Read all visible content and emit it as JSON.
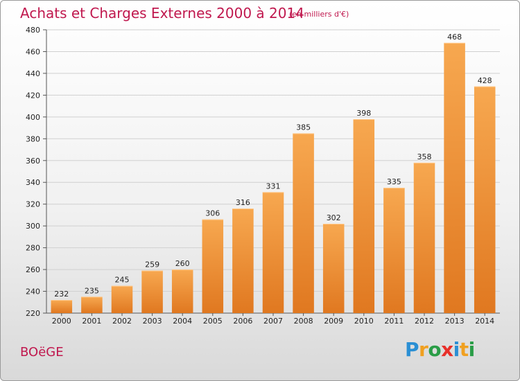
{
  "header": {
    "title": "Achats et Charges Externes 2000 à 2014",
    "subtitle": "(en milliers d'€)"
  },
  "footer": {
    "place": "BOëGE",
    "brand": {
      "letters": [
        "P",
        "r",
        "o",
        "x",
        "i",
        "t",
        "i"
      ],
      "colors": [
        "#2a8fd4",
        "#f0a020",
        "#2a9d47",
        "#e8302a",
        "#2a8fd4",
        "#f0a020",
        "#2a9d47"
      ]
    }
  },
  "colors": {
    "bar_light": "#f7a850",
    "bar_dark": "#e07820",
    "title": "#c0184e"
  },
  "chart_data": {
    "type": "bar",
    "title": "Achats et Charges Externes 2000 à 2014",
    "subtitle": "(en milliers d'€)",
    "categories": [
      "2000",
      "2001",
      "2002",
      "2003",
      "2004",
      "2005",
      "2006",
      "2007",
      "2008",
      "2009",
      "2010",
      "2011",
      "2012",
      "2013",
      "2014"
    ],
    "values": [
      232,
      235,
      245,
      259,
      260,
      306,
      316,
      331,
      385,
      302,
      398,
      335,
      358,
      468,
      428
    ],
    "ylim": [
      220,
      480
    ],
    "yticks": [
      220,
      240,
      260,
      280,
      300,
      320,
      340,
      360,
      380,
      400,
      420,
      440,
      460,
      480
    ],
    "grid": true,
    "data_labels": true
  }
}
